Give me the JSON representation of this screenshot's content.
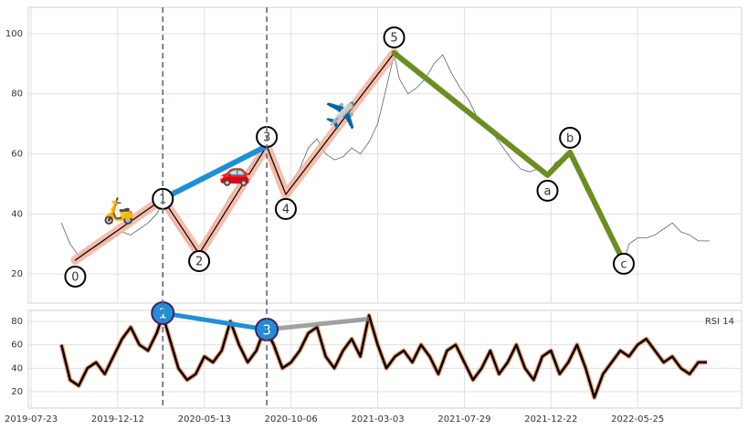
{
  "chart_data": [
    {
      "type": "line",
      "color": "#5a6270",
      "x": [
        35,
        45,
        55,
        65,
        75,
        85,
        95,
        105,
        115,
        125,
        135,
        145,
        152,
        160,
        170,
        180,
        190,
        194,
        200,
        210,
        220,
        230,
        240,
        250,
        260,
        272,
        280,
        290,
        294,
        300,
        310,
        320,
        330,
        340,
        350,
        360,
        370,
        380,
        390,
        400,
        410,
        419,
        425,
        435,
        445,
        455,
        465,
        475,
        485,
        495,
        505,
        515,
        525,
        535,
        545,
        555,
        565,
        575,
        585,
        596,
        605,
        615,
        622,
        630,
        640,
        650,
        660,
        670,
        684,
        690,
        700,
        710,
        720,
        730,
        740,
        750,
        760,
        770,
        783
      ],
      "values": [
        37,
        30,
        26,
        28,
        29,
        31,
        32,
        34,
        33,
        35,
        37,
        40,
        44,
        39,
        35,
        31,
        28,
        27,
        30,
        36,
        41,
        46,
        50,
        55,
        58,
        63,
        55,
        50,
        46,
        50,
        55,
        62,
        65,
        60,
        58,
        59,
        62,
        60,
        64,
        70,
        82,
        93,
        85,
        80,
        82,
        85,
        90,
        93,
        87,
        82,
        78,
        72,
        70,
        66,
        62,
        58,
        55,
        54,
        55,
        53,
        57,
        59,
        61,
        55,
        48,
        43,
        38,
        32,
        24,
        30,
        32,
        32,
        33,
        35,
        37,
        34,
        33,
        31,
        31
      ],
      "xlim": [
        -3.2,
        820
      ],
      "ylim": [
        10.3,
        108.8
      ],
      "xticks": [
        0,
        100,
        200,
        300,
        400,
        500,
        600,
        700
      ],
      "yticks": [
        20,
        40,
        60,
        80,
        100
      ],
      "grid": true,
      "vlines": [
        152,
        272
      ],
      "waves": [
        {
          "label": "0",
          "x": 51,
          "y": 24.6
        },
        {
          "label": "1",
          "x": 152,
          "y": 45
        },
        {
          "label": "2",
          "x": 194,
          "y": 26.7
        },
        {
          "label": "3",
          "x": 272,
          "y": 62.6
        },
        {
          "label": "4",
          "x": 294,
          "y": 46.5
        },
        {
          "label": "5",
          "x": 419,
          "y": 93.6
        },
        {
          "label": "a",
          "x": 596,
          "y": 52.9
        },
        {
          "label": "b",
          "x": 622,
          "y": 60.5
        },
        {
          "label": "c",
          "x": 684,
          "y": 24
        }
      ],
      "impulse_color": "#f5b19c",
      "skip_color": "#1f8fd6",
      "correction_color": "#6b8e23",
      "icons": [
        "🛵",
        "🚗",
        "✈️"
      ]
    },
    {
      "type": "line",
      "title": "RSI 14",
      "color": "#000000",
      "halo_color": "#f0a070",
      "x": [
        35,
        45,
        55,
        65,
        75,
        85,
        95,
        105,
        115,
        125,
        135,
        145,
        152,
        160,
        170,
        180,
        190,
        200,
        210,
        220,
        230,
        240,
        250,
        260,
        270,
        280,
        290,
        300,
        310,
        320,
        330,
        340,
        350,
        360,
        370,
        380,
        390,
        400,
        410,
        420,
        430,
        440,
        450,
        460,
        470,
        480,
        490,
        500,
        510,
        520,
        530,
        540,
        550,
        560,
        570,
        580,
        590,
        600,
        610,
        620,
        630,
        640,
        650,
        660,
        670,
        680,
        690,
        700,
        710,
        720,
        730,
        740,
        750,
        760,
        770,
        780
      ],
      "values": [
        60,
        30,
        25,
        40,
        45,
        35,
        50,
        65,
        75,
        60,
        55,
        70,
        85,
        65,
        40,
        30,
        35,
        50,
        45,
        55,
        80,
        60,
        45,
        55,
        75,
        60,
        40,
        45,
        55,
        70,
        75,
        50,
        40,
        55,
        65,
        50,
        85,
        60,
        40,
        50,
        55,
        45,
        60,
        50,
        35,
        55,
        60,
        45,
        30,
        40,
        55,
        35,
        45,
        60,
        40,
        30,
        50,
        55,
        35,
        45,
        60,
        40,
        15,
        35,
        45,
        55,
        50,
        60,
        65,
        55,
        45,
        50,
        40,
        35,
        45,
        45
      ],
      "xlim": [
        -3.2,
        820
      ],
      "ylim": [
        6,
        89.3
      ],
      "xticks": [
        {
          "value": 0,
          "label": "2019-07-23"
        },
        {
          "value": 100,
          "label": "2019-12-12"
        },
        {
          "value": 200,
          "label": "2020-05-13"
        },
        {
          "value": 300,
          "label": "2020-10-06"
        },
        {
          "value": 400,
          "label": "2021-03-03"
        },
        {
          "value": 500,
          "label": "2021-07-29"
        },
        {
          "value": 600,
          "label": "2021-12-22"
        },
        {
          "value": 700,
          "label": "2022-05-25"
        }
      ],
      "yticks": [
        20,
        40,
        60,
        80
      ],
      "grid": true,
      "waves": [
        {
          "label": "1",
          "x": 152,
          "y": 87
        },
        {
          "label": "3",
          "x": 272,
          "y": 73
        }
      ],
      "target": {
        "x": 390,
        "y": 82
      },
      "skip_color": "#1f8fd6",
      "target_color": "#8a8a8a"
    }
  ]
}
